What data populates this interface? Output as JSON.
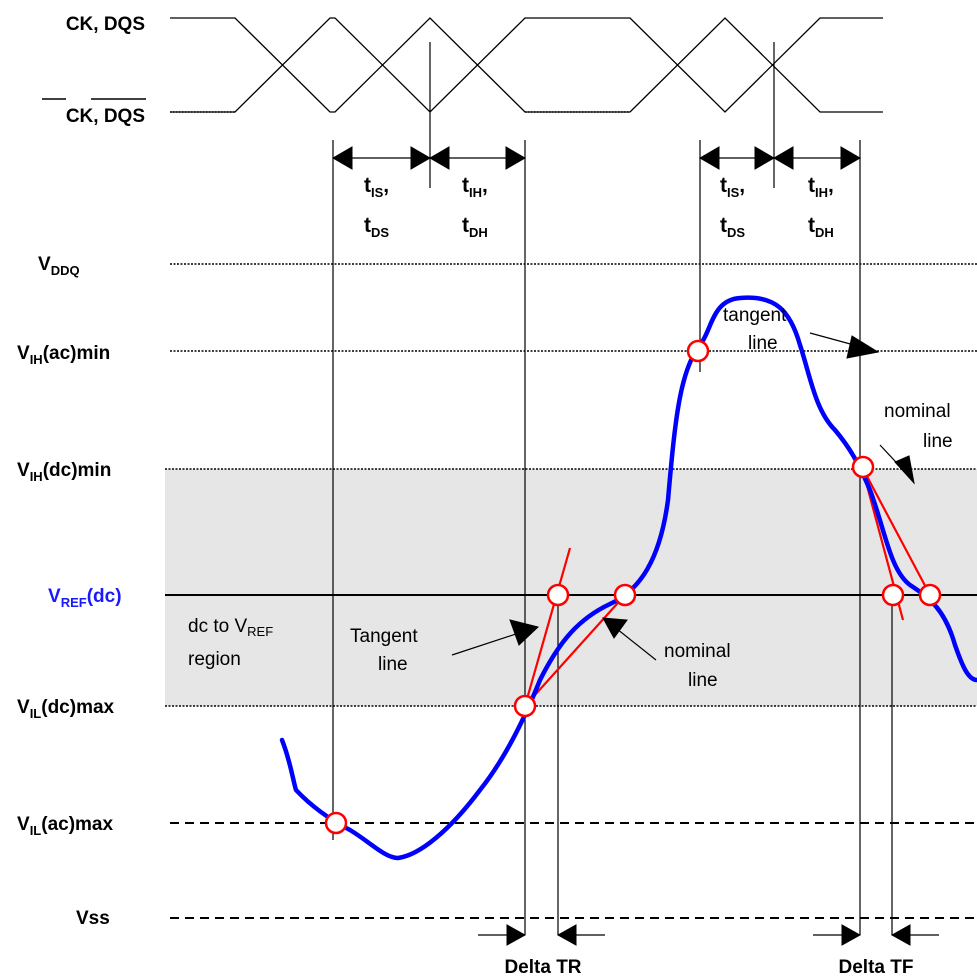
{
  "signals": {
    "clock_true": "CK, DQS",
    "clock_comp": "CK, DQS"
  },
  "levels": {
    "vddq": {
      "main": "V",
      "sub": "DDQ",
      "tail": ""
    },
    "vih_ac": {
      "main": "V",
      "sub": "IH",
      "tail": "(ac)min"
    },
    "vih_dc": {
      "main": "V",
      "sub": "IH",
      "tail": "(dc)min"
    },
    "vref": {
      "main": "V",
      "sub": "REF",
      "tail": "(dc)"
    },
    "vil_dc": {
      "main": "V",
      "sub": "IL",
      "tail": "(dc)max"
    },
    "vil_ac": {
      "main": "V",
      "sub": "IL",
      "tail": "(ac)max"
    },
    "vss": "Vss"
  },
  "timing": {
    "setup_1": {
      "t": "t",
      "sub": "IS",
      "comma": ","
    },
    "setup_2": {
      "t": "t",
      "sub": "DS"
    },
    "hold_1": {
      "t": "t",
      "sub": "IH",
      "comma": ","
    },
    "hold_2": {
      "t": "t",
      "sub": "DH"
    }
  },
  "region": {
    "line1_pre": "dc to V",
    "line1_sub": "REF",
    "line2": "region"
  },
  "annotations": {
    "tangent_left_1": "Tangent",
    "tangent_left_2": "line",
    "nominal_left_1": "nominal",
    "nominal_left_2": "line",
    "nominal_right_1": "nominal",
    "nominal_right_2": "line",
    "tangent_right_1": "tangent",
    "tangent_right_2": "line"
  },
  "deltas": {
    "rise": "Delta TR",
    "fall": "Delta TF"
  },
  "colors": {
    "signal": "#0000ff",
    "tangent": "#ff0000",
    "region": "#e6e6e6",
    "vref_label": "#1a1aff"
  }
}
